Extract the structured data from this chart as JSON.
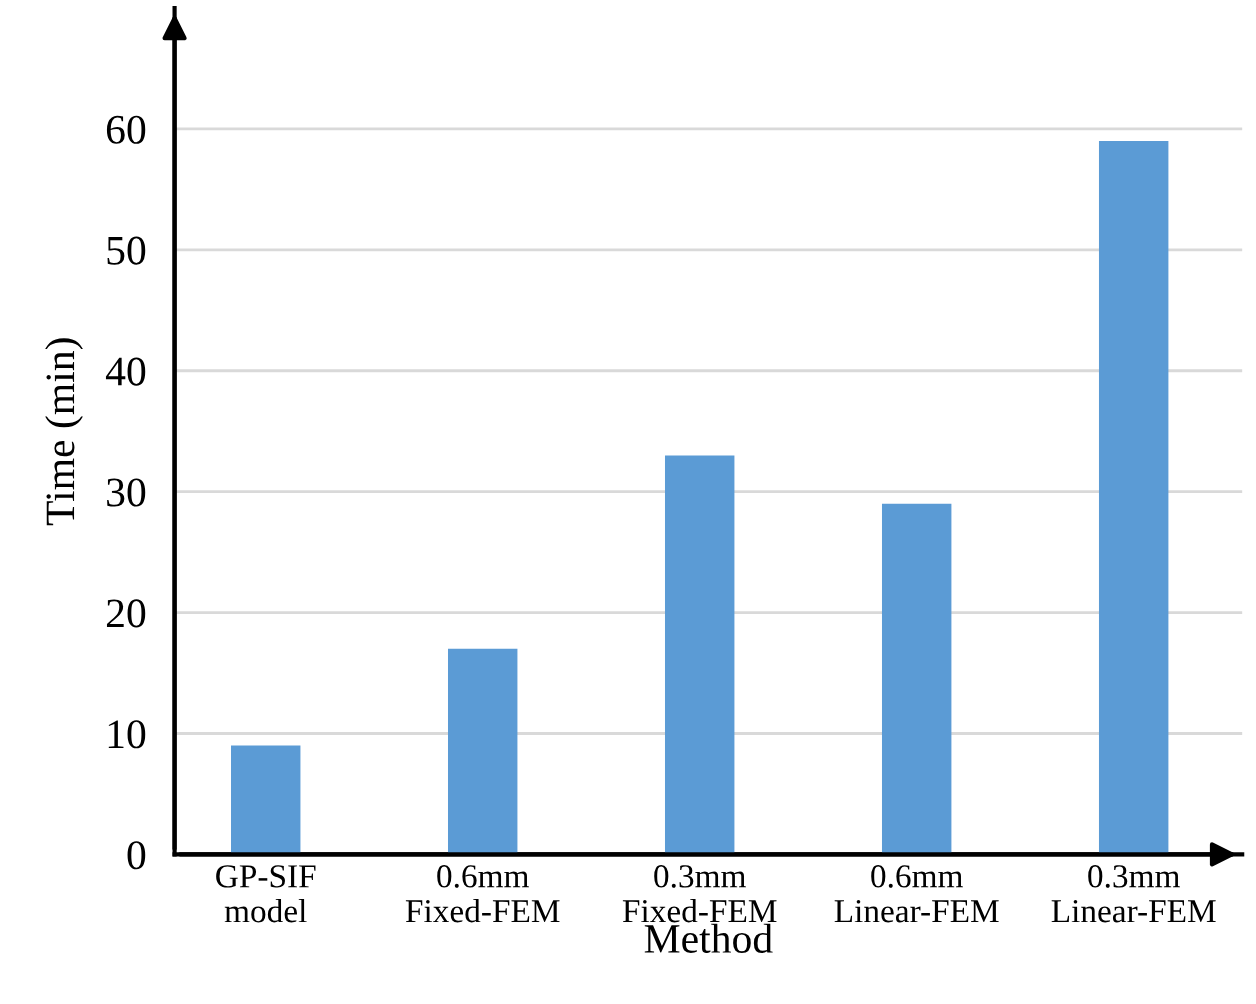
{
  "chart_data": {
    "type": "bar",
    "xlabel": "Method",
    "ylabel": "Time (min)",
    "categories": [
      "GP-SIF\nmodel",
      "0.6mm\nFixed-FEM",
      "0.3mm\nFixed-FEM",
      "0.6mm\nLinear-FEM",
      "0.3mm\nLinear-FEM"
    ],
    "values": [
      9,
      17,
      33,
      29,
      59
    ],
    "color": "#5b9bd5",
    "ylim": [
      0,
      70
    ],
    "yticks": [
      0,
      10,
      20,
      30,
      40,
      50,
      60
    ],
    "grid": "y",
    "legend": false
  }
}
